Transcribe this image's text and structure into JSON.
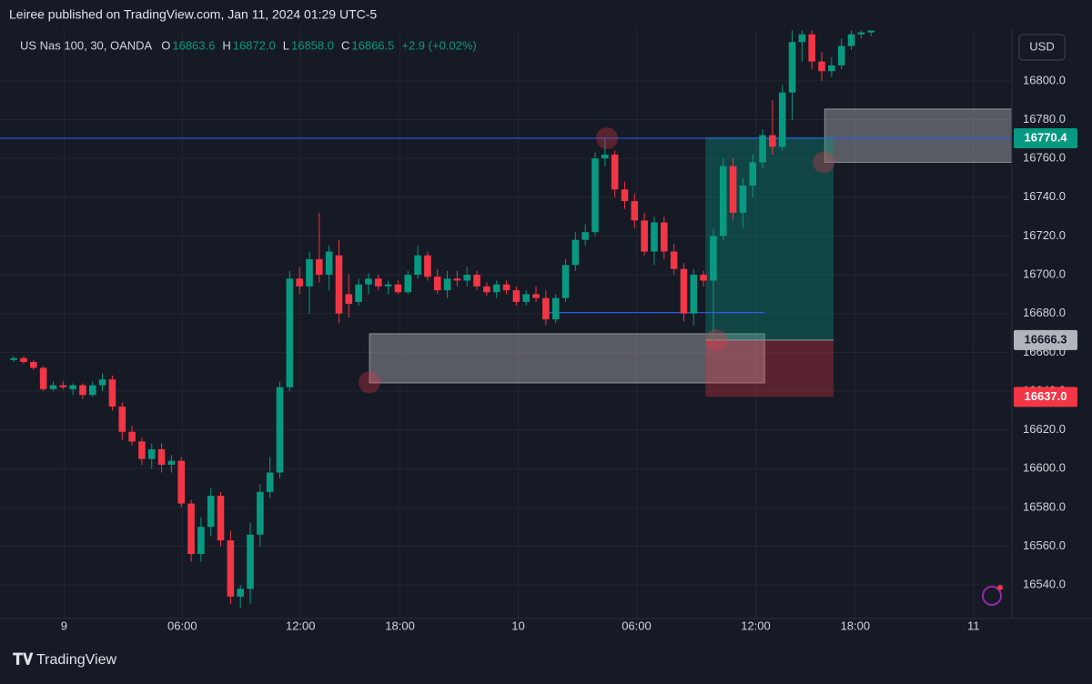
{
  "header": {
    "published": "Leiree published on TradingView.com, Jan 11, 2024 01:29 UTC-5",
    "footer": "TradingView"
  },
  "chart_data": {
    "type": "candlestick",
    "symbol": "US Nas 100, 30, OANDA",
    "legend": {
      "o": "O",
      "h": "H",
      "l": "L",
      "c": "C",
      "open": 16863.6,
      "high": {
        "value": 16872,
        "label": "16872.0"
      },
      "low": {
        "value": 16858,
        "label": "16858.0"
      },
      "close": 16866.5,
      "change": "+2.9 (+0.02%)"
    },
    "currency": "USD",
    "up_color": "#089981",
    "down_color": "#f23645",
    "ylim": [
      16522.7,
      16826.7
    ],
    "xlim": [
      -1.4,
      101.3
    ],
    "grid": true,
    "yticks": [
      {
        "value": 16540,
        "label": "16540.0"
      },
      {
        "value": 16560,
        "label": "16560.0"
      },
      {
        "value": 16580,
        "label": "16580.0"
      },
      {
        "value": 16600,
        "label": "16600.0"
      },
      {
        "value": 16620,
        "label": "16620.0"
      },
      {
        "value": 16640,
        "label": "16640.0"
      },
      {
        "value": 16660,
        "label": "16660.0"
      },
      {
        "value": 16680,
        "label": "16680.0"
      },
      {
        "value": 16700,
        "label": "16700.0"
      },
      {
        "value": 16720,
        "label": "16720.0"
      },
      {
        "value": 16740,
        "label": "16740.0"
      },
      {
        "value": 16760,
        "label": "16760.0"
      },
      {
        "value": 16780,
        "label": "16780.0"
      },
      {
        "value": 16800,
        "label": "16800.0"
      }
    ],
    "xticks": [
      {
        "value": 5.1,
        "label": "9"
      },
      {
        "value": 17.1,
        "label": "06:00"
      },
      {
        "value": 29.1,
        "label": "12:00"
      },
      {
        "value": 39.2,
        "label": "18:00"
      },
      {
        "value": 51.2,
        "label": "10"
      },
      {
        "value": 63.2,
        "label": "06:00"
      },
      {
        "value": 75.3,
        "label": "12:00"
      },
      {
        "value": 85.4,
        "label": "18:00"
      },
      {
        "value": 97.4,
        "label": "11"
      }
    ],
    "ohlc": [
      [
        16656,
        16658,
        16655,
        16657
      ],
      [
        16657,
        16658,
        16654,
        16655
      ],
      [
        16655,
        16656,
        16651,
        16652
      ],
      [
        16652,
        16653,
        16640,
        16641
      ],
      [
        16641,
        16645,
        16640,
        16643
      ],
      [
        16643,
        16645,
        16641,
        16642
      ],
      [
        16641,
        16644,
        16638,
        16643
      ],
      [
        16643,
        16644,
        16636,
        16638
      ],
      [
        16638,
        16645,
        16637,
        16643
      ],
      [
        16643,
        16649,
        16640,
        16646
      ],
      [
        16646,
        16648,
        16630,
        16632
      ],
      [
        16632,
        16634,
        16615,
        16619
      ],
      [
        16619,
        16622,
        16612,
        16614
      ],
      [
        16614,
        16616,
        16602,
        16605
      ],
      [
        16605,
        16613,
        16600,
        16610
      ],
      [
        16610,
        16613,
        16598,
        16602
      ],
      [
        16602,
        16607,
        16598,
        16604
      ],
      [
        16604,
        16606,
        16580,
        16582
      ],
      [
        16582,
        16584,
        16552,
        16556
      ],
      [
        16556,
        16575,
        16552,
        16570
      ],
      [
        16570,
        16590,
        16565,
        16586
      ],
      [
        16586,
        16588,
        16560,
        16563
      ],
      [
        16563,
        16568,
        16530,
        16534
      ],
      [
        16534,
        16540,
        16528,
        16538
      ],
      [
        16538,
        16572,
        16530,
        16566
      ],
      [
        16566,
        16592,
        16560,
        16588
      ],
      [
        16588,
        16606,
        16585,
        16598
      ],
      [
        16598,
        16645,
        16595,
        16642
      ],
      [
        16642,
        16702,
        16640,
        16698
      ],
      [
        16698,
        16704,
        16690,
        16694
      ],
      [
        16694,
        16712,
        16680,
        16708
      ],
      [
        16708,
        16732,
        16696,
        16700
      ],
      [
        16700,
        16715,
        16692,
        16712
      ],
      [
        16710,
        16718,
        16675,
        16680
      ],
      [
        16690,
        16700,
        16678,
        16685
      ],
      [
        16686,
        16698,
        16684,
        16695
      ],
      [
        16695,
        16701,
        16690,
        16698
      ],
      [
        16698,
        16700,
        16692,
        16694
      ],
      [
        16694,
        16697,
        16690,
        16695
      ],
      [
        16695,
        16697,
        16690,
        16691
      ],
      [
        16691,
        16702,
        16690,
        16700
      ],
      [
        16700,
        16715,
        16698,
        16710
      ],
      [
        16710,
        16712,
        16697,
        16699
      ],
      [
        16699,
        16703,
        16690,
        16692
      ],
      [
        16692,
        16702,
        16688,
        16698
      ],
      [
        16698,
        16702,
        16694,
        16697
      ],
      [
        16697,
        16704,
        16694,
        16700
      ],
      [
        16700,
        16702,
        16692,
        16694
      ],
      [
        16694,
        16696,
        16689,
        16691
      ],
      [
        16691,
        16697,
        16688,
        16695
      ],
      [
        16695,
        16697,
        16690,
        16692
      ],
      [
        16692,
        16694,
        16684,
        16686
      ],
      [
        16686,
        16692,
        16684,
        16690
      ],
      [
        16690,
        16694,
        16686,
        16688
      ],
      [
        16688,
        16692,
        16674,
        16677
      ],
      [
        16677,
        16690,
        16675,
        16688
      ],
      [
        16688,
        16708,
        16686,
        16705
      ],
      [
        16705,
        16722,
        16702,
        16718
      ],
      [
        16718,
        16726,
        16715,
        16722
      ],
      [
        16722,
        16763,
        16720,
        16760
      ],
      [
        16760,
        16770,
        16756,
        16762
      ],
      [
        16762,
        16764,
        16740,
        16744
      ],
      [
        16744,
        16748,
        16734,
        16738
      ],
      [
        16738,
        16742,
        16724,
        16728
      ],
      [
        16728,
        16732,
        16710,
        16712
      ],
      [
        16712,
        16730,
        16705,
        16727
      ],
      [
        16727,
        16730,
        16708,
        16712
      ],
      [
        16712,
        16716,
        16700,
        16703
      ],
      [
        16703,
        16706,
        16676,
        16680
      ],
      [
        16680,
        16703,
        16674,
        16700
      ],
      [
        16700,
        16702,
        16694,
        16697
      ],
      [
        16697,
        16724,
        16666,
        16720
      ],
      [
        16720,
        16760,
        16718,
        16756
      ],
      [
        16756,
        16760,
        16728,
        16732
      ],
      [
        16732,
        16750,
        16724,
        16746
      ],
      [
        16746,
        16762,
        16740,
        16758
      ],
      [
        16758,
        16775,
        16755,
        16772
      ],
      [
        16772,
        16790,
        16762,
        16766
      ],
      [
        16766,
        16798,
        16764,
        16794
      ],
      [
        16794,
        16826,
        16780,
        16820
      ],
      [
        16820,
        16826,
        16810,
        16824
      ],
      [
        16824,
        16826,
        16806,
        16810
      ],
      [
        16810,
        16815,
        16800,
        16805
      ],
      [
        16805,
        16812,
        16802,
        16808
      ],
      [
        16808,
        16822,
        16806,
        16818
      ],
      [
        16818,
        16826,
        16816,
        16824
      ],
      [
        16824,
        16826,
        16822,
        16825
      ],
      [
        16825,
        16826,
        16823,
        16826
      ]
    ],
    "hline": 16770.4,
    "segment": {
      "x": [
        54.2,
        76.2
      ],
      "y": 16680.5
    },
    "zones": [
      {
        "x": [
          36.1,
          76.2
        ],
        "y": [
          16644.2,
          16669.6
        ]
      },
      {
        "x": [
          82.3,
          101.3
        ],
        "y": [
          16758,
          16785.5
        ]
      }
    ],
    "position": {
      "x": [
        70.2,
        83.2
      ],
      "entry": 16666.3,
      "target": 16771,
      "stop": {
        "value": 16637,
        "label": "16637.0"
      }
    },
    "markers": [
      {
        "x": 36.1,
        "y": 16644.5
      },
      {
        "x": 60.2,
        "y": 16770.4
      },
      {
        "x": 71.3,
        "y": 16666.3
      },
      {
        "x": 82.2,
        "y": 16758
      }
    ]
  }
}
